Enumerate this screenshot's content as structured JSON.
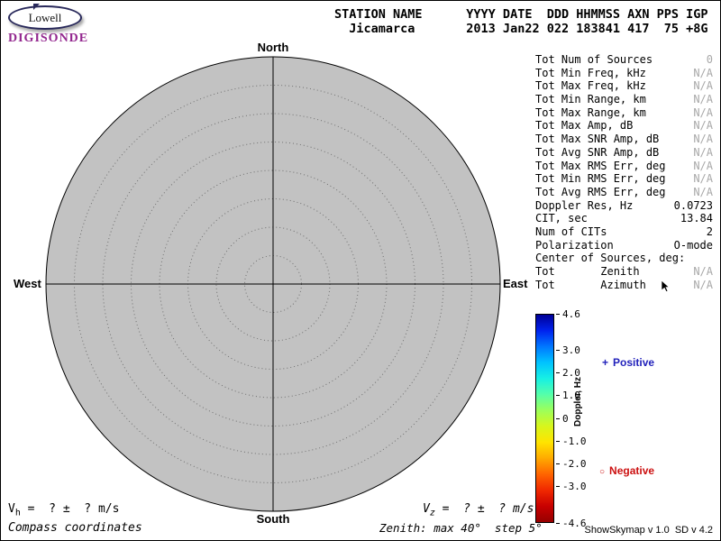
{
  "logo": {
    "name": "Lowell",
    "product": "DIGISONDE"
  },
  "header": {
    "line1": "STATION NAME      YYYY DATE  DDD HHMMSS AXN PPS IGP",
    "line2": "  Jicamarca       2013 Jan22 022 183841 417  75 +8G",
    "station": "Jicamarca",
    "year": "2013",
    "date": "Jan22",
    "day_of_year": "022",
    "time_hhmmss": "183841",
    "axn": "417",
    "pps": "75",
    "igp": "+8G"
  },
  "compass": {
    "labels": {
      "north": "North",
      "south": "South",
      "east": "East",
      "west": "West"
    },
    "max_zenith_deg": 40,
    "step_deg": 5
  },
  "stats": {
    "rows": [
      {
        "label": "Tot Num of Sources",
        "value": "0",
        "dim": true
      },
      {
        "label": "Tot Min Freq, kHz",
        "value": "N/A",
        "dim": true
      },
      {
        "label": "Tot Max Freq, kHz",
        "value": "N/A",
        "dim": true
      },
      {
        "label": "Tot Min Range, km",
        "value": "N/A",
        "dim": true
      },
      {
        "label": "Tot Max Range, km",
        "value": "N/A",
        "dim": true
      },
      {
        "label": "Tot Max Amp, dB",
        "value": "N/A",
        "dim": true
      },
      {
        "label": "Tot Max SNR Amp, dB",
        "value": "N/A",
        "dim": true
      },
      {
        "label": "Tot Avg SNR Amp, dB",
        "value": "N/A",
        "dim": true
      },
      {
        "label": "Tot Max RMS Err, deg",
        "value": "N/A",
        "dim": true
      },
      {
        "label": "Tot Min RMS Err, deg",
        "value": "N/A",
        "dim": true
      },
      {
        "label": "Tot Avg RMS Err, deg",
        "value": "N/A",
        "dim": true
      },
      {
        "label": "Doppler Res, Hz",
        "value": "0.0723",
        "dim": false
      },
      {
        "label": "CIT, sec",
        "value": "13.84",
        "dim": false
      },
      {
        "label": "Num of CITs",
        "value": "2",
        "dim": false
      },
      {
        "label": "Polarization",
        "value": "O-mode",
        "dim": false
      },
      {
        "label": "Center of Sources, deg:",
        "value": "",
        "dim": false
      },
      {
        "label": "Tot       Zenith",
        "value": "N/A",
        "dim": true
      },
      {
        "label": "Tot       Azimuth",
        "value": "N/A",
        "dim": true
      }
    ]
  },
  "colorbar": {
    "title": "Doppler, Hz",
    "unit_max": 4.6,
    "unit_min": -4.6,
    "ticks": [
      {
        "label": "4.6",
        "value": 4.6
      },
      {
        "label": "3.0",
        "value": 3.0
      },
      {
        "label": "2.0",
        "value": 2.0
      },
      {
        "label": "1.0",
        "value": 1.0
      },
      {
        "label": "0",
        "value": 0
      },
      {
        "label": "-1.0",
        "value": -1.0
      },
      {
        "label": "-2.0",
        "value": -2.0
      },
      {
        "label": "-3.0",
        "value": -3.0
      },
      {
        "label": "-4.6",
        "value": -4.6
      }
    ],
    "gradient": [
      "#000096",
      "#0022ee",
      "#0077ff",
      "#00c3ff",
      "#17f0e4",
      "#55ffaa",
      "#9dff5a",
      "#d8f61c",
      "#ffe400",
      "#ffaa00",
      "#ff6400",
      "#f02800",
      "#c80000",
      "#960000"
    ]
  },
  "legend": {
    "positive_marker": "+",
    "positive_label": "Positive",
    "negative_marker": "○",
    "negative_label": "Negative"
  },
  "footer": {
    "vh_base": "V",
    "vh_sub": "h",
    "vh_value": " =  ? ±  ? m/s",
    "vz_base": "V",
    "vz_sub": "z",
    "vz_value": " =  ? ±  ? m/s",
    "coords_label": "Compass coordinates",
    "zenith_label": "Zenith: max 40°  step 5°",
    "version": "ShowSkymap v 1.0  SD v 4.2"
  },
  "colors": {
    "na_value": "#a8a8a8",
    "positive": "#2222bb",
    "negative": "#cc1111",
    "disc_fill": "#c2c2c2",
    "digisonde_purple": "#93278f"
  }
}
